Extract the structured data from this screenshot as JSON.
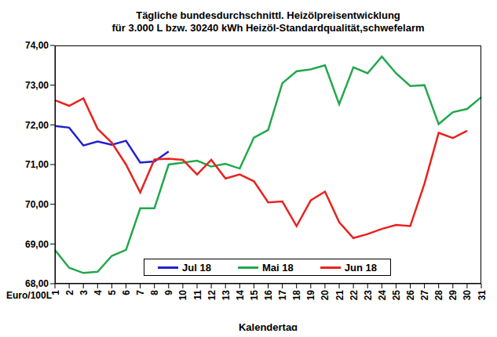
{
  "chart_data": {
    "type": "line",
    "title": "Tägliche bundesdurchschnittl. Heizölpreisentwicklung",
    "subtitle": "für 3.000 L bzw. 30240 kWh Heizöl-Standardqualität,schwefelarm",
    "x_label": "Kalendertag",
    "y_label": "Euro/100L",
    "categories": [
      "1",
      "2",
      "3",
      "4",
      "5",
      "6",
      "7",
      "8",
      "9",
      "10",
      "11",
      "12",
      "13",
      "14",
      "15",
      "16",
      "17",
      "18",
      "19",
      "20",
      "21",
      "22",
      "23",
      "24",
      "25",
      "26",
      "27",
      "28",
      "29",
      "30",
      "31"
    ],
    "series": [
      {
        "name": "Jul 18",
        "color": "#2020d0",
        "values": [
          71.97,
          71.93,
          71.48,
          71.58,
          71.5,
          71.6,
          71.05,
          71.08,
          71.33,
          null,
          null,
          null,
          null,
          null,
          null,
          null,
          null,
          null,
          null,
          null,
          null,
          null,
          null,
          null,
          null,
          null,
          null,
          null,
          null,
          null,
          null
        ]
      },
      {
        "name": "Mai 18",
        "color": "#22a84c",
        "values": [
          68.85,
          68.4,
          68.27,
          68.3,
          68.7,
          68.85,
          69.9,
          69.9,
          71.0,
          71.05,
          71.1,
          70.95,
          71.02,
          70.9,
          71.68,
          71.87,
          73.05,
          73.35,
          73.4,
          73.5,
          72.52,
          73.45,
          73.3,
          73.72,
          73.3,
          72.98,
          73.0,
          72.02,
          72.32,
          72.4,
          72.7
        ]
      },
      {
        "name": "Jun 18",
        "color": "#e8231f",
        "values": [
          72.62,
          72.48,
          72.67,
          71.9,
          71.55,
          71.0,
          70.3,
          71.13,
          71.15,
          71.12,
          70.75,
          71.12,
          70.65,
          70.75,
          70.58,
          70.05,
          70.07,
          69.45,
          70.1,
          70.32,
          69.55,
          69.15,
          69.25,
          69.38,
          69.48,
          69.45,
          70.52,
          71.8,
          71.67,
          71.85,
          null
        ]
      }
    ],
    "ylim": [
      68,
      74
    ],
    "yticks": [
      {
        "value": 68,
        "label": "68,00"
      },
      {
        "value": 69,
        "label": "69,00"
      },
      {
        "value": 70,
        "label": "70,00"
      },
      {
        "value": 71,
        "label": "71,00"
      },
      {
        "value": 72,
        "label": "72,00"
      },
      {
        "value": 73,
        "label": "73,00"
      },
      {
        "value": 74,
        "label": "74,00"
      }
    ],
    "grid": false,
    "legend": "bottom"
  }
}
